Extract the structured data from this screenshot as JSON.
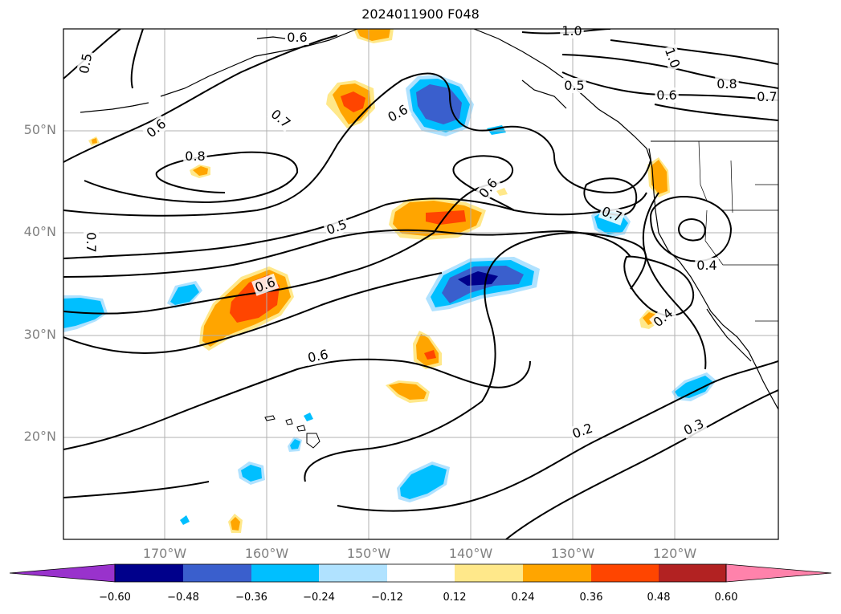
{
  "title": "2024011900 F048",
  "lat_labels": [
    "50°N",
    "40°N",
    "30°N",
    "20°N"
  ],
  "lon_labels": [
    "170°W",
    "160°W",
    "150°W",
    "140°W",
    "130°W",
    "120°W"
  ],
  "colorbar": {
    "ticks": [
      "−0.60",
      "−0.48",
      "−0.36",
      "−0.24",
      "−0.12",
      "0.12",
      "0.24",
      "0.36",
      "0.48",
      "0.60"
    ],
    "colors": [
      "#9932cc",
      "#00008b",
      "#3a5fcd",
      "#00bfff",
      "#b0e2ff",
      "#ffffff",
      "#ffe88a",
      "#ffa500",
      "#ff4500",
      "#b22222",
      "#ff82ab"
    ]
  },
  "contour_labels": [
    "0.5",
    "0.6",
    "0.6",
    "1.0",
    "1.0",
    "0.8",
    "0.6",
    "0.7",
    "0.5",
    "0.6",
    "0.7",
    "0.6",
    "0.8",
    "0.7",
    "0.7",
    "0.5",
    "0.6",
    "0.4",
    "0.4",
    "0.6",
    "0.2",
    "0.3",
    "0.2"
  ],
  "colors": {
    "grid": "#b0b0b0",
    "contour": "#000000",
    "tick_text": "#808080"
  }
}
